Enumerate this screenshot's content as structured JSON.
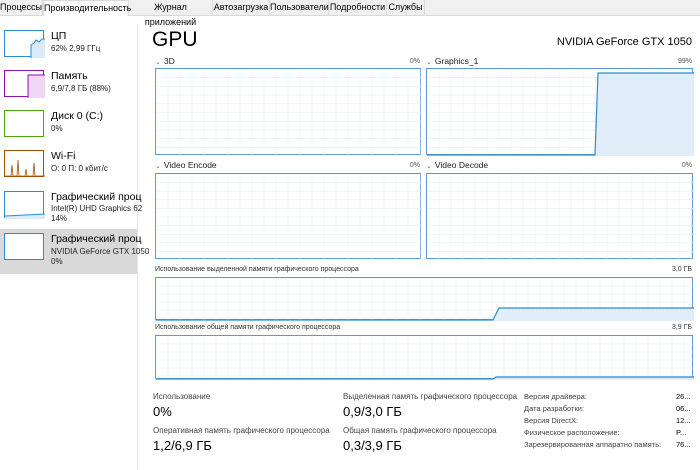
{
  "tabs": [
    "Процессы",
    "Производительность",
    "Журнал приложений",
    "Автозагрузка",
    "Пользователи",
    "Подробности",
    "Службы"
  ],
  "sidebar": [
    {
      "title": "ЦП",
      "sub1": "62%  2,99 ГГц",
      "sub2": "",
      "color": "#2a8dd4"
    },
    {
      "title": "Память",
      "sub1": "6,9/7,8 ГБ (88%)",
      "sub2": "",
      "color": "#8b12ae"
    },
    {
      "title": "Диск 0 (C:)",
      "sub1": "0%",
      "sub2": "",
      "color": "#4da60c"
    },
    {
      "title": "Wi-Fi",
      "sub1": "О: 0  П: 0 кбит/с",
      "sub2": "",
      "color": "#a74f01"
    },
    {
      "title": "Графический проц",
      "sub1": "Intel(R) UHD Graphics 62",
      "sub2": "14%",
      "color": "#2a8dd4"
    },
    {
      "title": "Графический проц",
      "sub1": "NVIDIA GeForce GTX 1050",
      "sub2": "0%",
      "color": "#2a8dd4"
    }
  ],
  "gpu": {
    "title": "GPU",
    "model": "NVIDIA GeForce GTX 1050"
  },
  "engines": [
    {
      "name": "3D",
      "value": "0%",
      "level": 0
    },
    {
      "name": "Graphics_1",
      "value": "99%",
      "level": 0.99
    },
    {
      "name": "Video Encode",
      "value": "0%",
      "level": 0
    },
    {
      "name": "Video Decode",
      "value": "0%",
      "level": 0
    }
  ],
  "memory_graphs": [
    {
      "label": "Использование выделенной памяти графического процессора",
      "max": "3,0 ГБ",
      "level": 0.3
    },
    {
      "label": "Использование общей памяти графического процессора",
      "max": "3,9 ГБ",
      "level": 0.08
    }
  ],
  "stats": {
    "usage_label": "Использование",
    "usage_value": "0%",
    "gpu_mem_label": "Оперативная память графического процессора",
    "gpu_mem_value": "1,2/6,9 ГБ",
    "dedicated_label": "Выделенная память графического процессора",
    "dedicated_value": "0,9/3,0 ГБ",
    "shared_label": "Общая память графического процессора",
    "shared_value": "0,3/3,9 ГБ"
  },
  "info": [
    {
      "label": "Версия драйвера:",
      "value": "26..."
    },
    {
      "label": "Дата разработки:",
      "value": "06..."
    },
    {
      "label": "Версия DirectX:",
      "value": "12..."
    },
    {
      "label": "Физическое расположение:",
      "value": "P..."
    },
    {
      "label": "Зарезервированная аппаратно память:",
      "value": "76..."
    }
  ]
}
